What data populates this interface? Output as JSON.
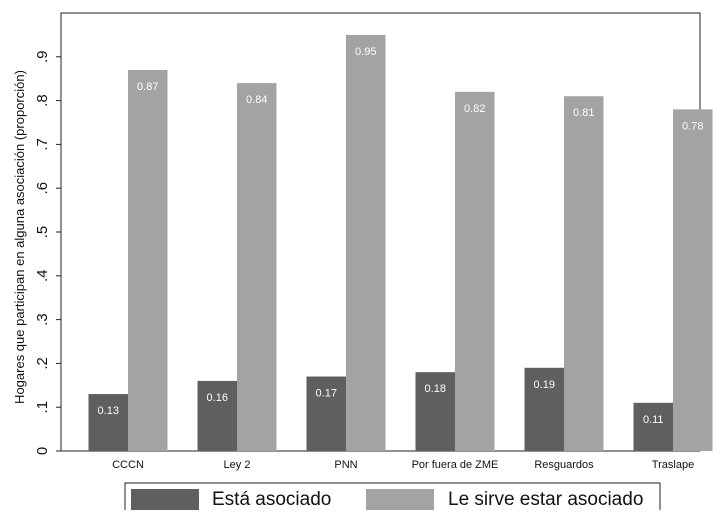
{
  "chart_data": {
    "type": "bar",
    "title": "",
    "xlabel": "",
    "ylabel": "Hogares que participan en alguna asociación (proporción)",
    "ylim": [
      0,
      1
    ],
    "yticks": [
      0,
      0.1,
      0.2,
      0.3,
      0.4,
      0.5,
      0.6,
      0.7,
      0.8,
      0.9
    ],
    "ytick_labels": [
      "0",
      ".1",
      ".2",
      ".3",
      ".4",
      ".5",
      ".6",
      ".7",
      ".8",
      ".9"
    ],
    "categories": [
      "CCCN",
      "Ley 2",
      "PNN",
      "Por fuera de ZME",
      "Resguardos",
      "Traslape"
    ],
    "series": [
      {
        "name": "Está asociado",
        "color": "#5f5f5f",
        "values": [
          0.13,
          0.16,
          0.17,
          0.18,
          0.19,
          0.11
        ],
        "labels": [
          "0.13",
          "0.16",
          "0.17",
          "0.18",
          "0.19",
          "0.11"
        ]
      },
      {
        "name": "Le sirve estar asociado",
        "color": "#a3a3a3",
        "values": [
          0.87,
          0.84,
          0.95,
          0.82,
          0.81,
          0.78
        ],
        "labels": [
          "0.87",
          "0.84",
          "0.95",
          "0.82",
          "0.81",
          "0.78"
        ]
      }
    ],
    "grid": false,
    "legend": "bottom"
  }
}
